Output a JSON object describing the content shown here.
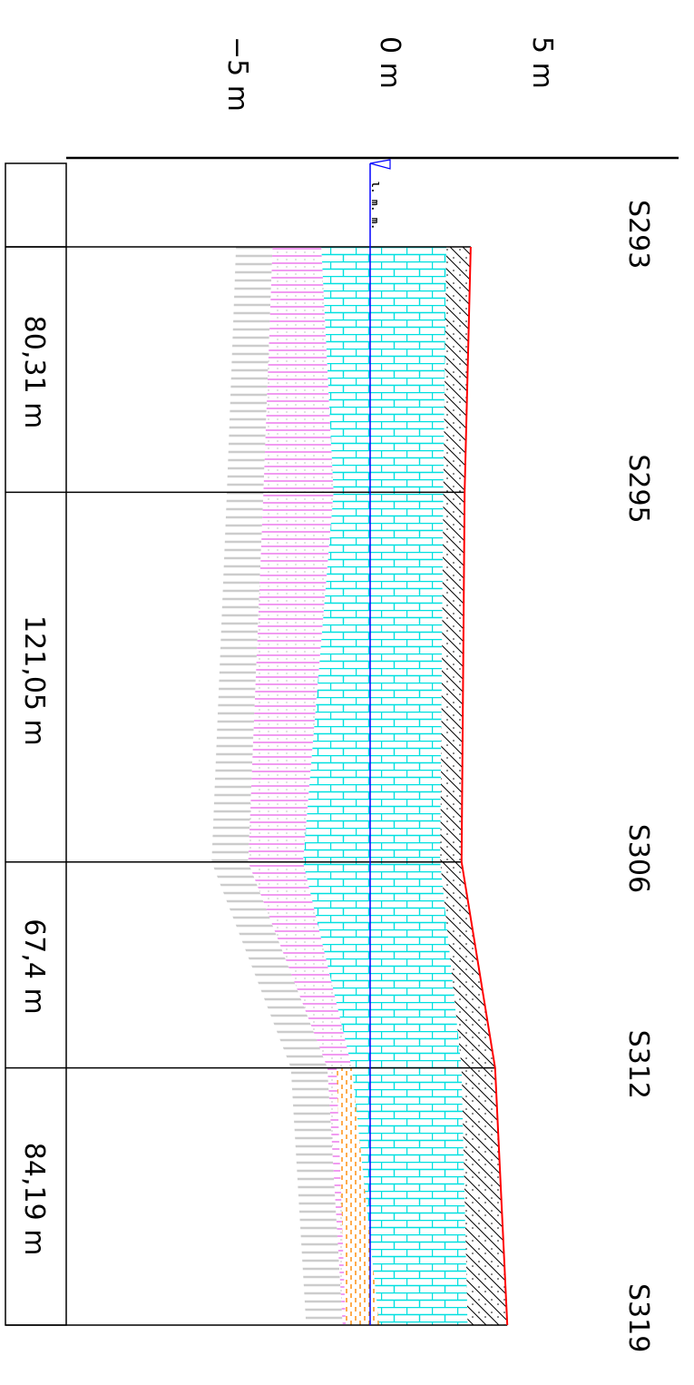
{
  "axis": {
    "ticks": [
      {
        "value": 5,
        "label": "5 m"
      },
      {
        "value": 0,
        "label": "0 m"
      },
      {
        "value": -5,
        "label": "−5 m"
      }
    ]
  },
  "water_level_label": "l. m. m.",
  "stations": [
    {
      "name": "S293",
      "top": 3.3,
      "layer2_top": 2.5,
      "layer3_bottom": -1.6,
      "layer4_bottom": -3.2
    },
    {
      "name": "S295",
      "top": 3.1,
      "layer2_top": 2.4,
      "layer3_bottom": -1.2,
      "layer4_bottom": -3.5
    },
    {
      "name": "S306",
      "top": 3.0,
      "layer2_top": 2.3,
      "layer3_bottom": -2.2,
      "layer4_bottom": -4.0
    },
    {
      "name": "S312",
      "top": 4.1,
      "layer2_top": 3.0,
      "layer3_bottom": -0.6,
      "layer4_bottom": -1.4
    },
    {
      "name": "S319",
      "top": 4.5,
      "layer2_top": 3.2,
      "layer3_bottom": 0.3,
      "layer4_bottom": -0.9
    }
  ],
  "segments": [
    {
      "label": "80,31 m",
      "length": 80.31
    },
    {
      "label": "121,05 m",
      "length": 121.05
    },
    {
      "label": "67,4 m",
      "length": 67.4
    },
    {
      "label": "84,19 m",
      "length": 84.19
    }
  ],
  "colors": {
    "surface_line": "#ff0000",
    "water_line": "#0000ff",
    "layer_hatch": "#000000",
    "layer_brick": "#00e0e0",
    "layer_pink": "#ee82ee",
    "layer_orange": "#ff8800",
    "layer_grey": "#cccccc"
  }
}
